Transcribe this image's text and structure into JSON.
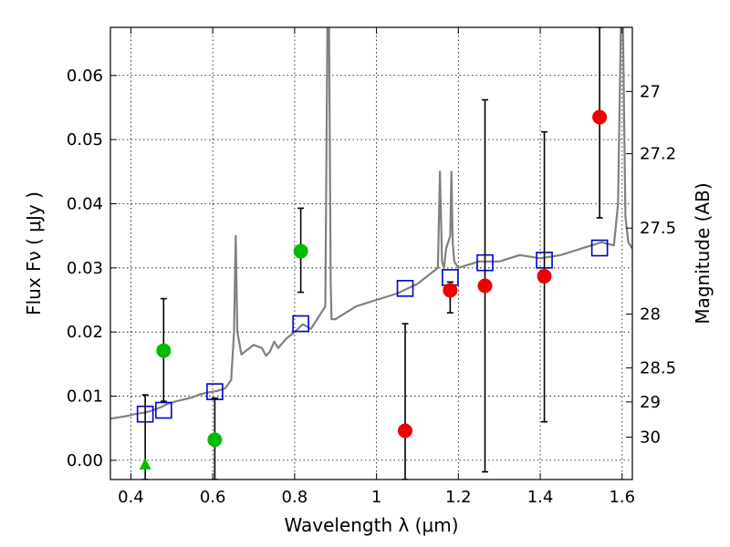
{
  "chart_data": {
    "type": "scatter",
    "title": "",
    "xlabel": "Wavelength  λ (μm)",
    "ylabel": "Flux  Fν  ( μJy )",
    "ylabel_right": "Magnitude (AB)",
    "xlim": [
      0.35,
      1.625
    ],
    "ylim": [
      -0.003,
      0.0675
    ],
    "xticks": [
      0.4,
      0.6,
      0.8,
      1.0,
      1.2,
      1.4,
      1.6
    ],
    "xtick_labels": [
      "0.4",
      "0.6",
      "0.8",
      "1",
      "1.2",
      "1.4",
      "1.6"
    ],
    "yticks": [
      0.0,
      0.01,
      0.02,
      0.03,
      0.04,
      0.05,
      0.06
    ],
    "ytick_labels": [
      "0.00",
      "0.01",
      "0.02",
      "0.03",
      "0.04",
      "0.05",
      "0.06"
    ],
    "right_ticks": [
      {
        "label": "27",
        "flux": 0.0575
      },
      {
        "label": "27.2",
        "flux": 0.0478
      },
      {
        "label": "27.5",
        "flux": 0.0362
      },
      {
        "label": "28",
        "flux": 0.0228
      },
      {
        "label": "28.5",
        "flux": 0.0144
      },
      {
        "label": "29",
        "flux": 0.0091
      },
      {
        "label": "30",
        "flux": 0.0036
      }
    ],
    "grid": true,
    "colors": {
      "spectrum": "#808080",
      "model_box": "#0000cc",
      "detection_green": "#00bb00",
      "detection_red": "#ee0000",
      "errorbar": "#000000"
    },
    "series": [
      {
        "name": "model spectrum",
        "kind": "line",
        "x": [
          0.35,
          0.37,
          0.39,
          0.41,
          0.43,
          0.45,
          0.47,
          0.49,
          0.51,
          0.53,
          0.55,
          0.57,
          0.59,
          0.61,
          0.63,
          0.645,
          0.652,
          0.656,
          0.66,
          0.67,
          0.68,
          0.7,
          0.72,
          0.73,
          0.74,
          0.75,
          0.76,
          0.78,
          0.8,
          0.82,
          0.84,
          0.86,
          0.875,
          0.88,
          0.884,
          0.888,
          0.89,
          0.9,
          0.95,
          1.0,
          1.05,
          1.1,
          1.13,
          1.15,
          1.155,
          1.16,
          1.165,
          1.17,
          1.18,
          1.183,
          1.186,
          1.19,
          1.2,
          1.25,
          1.3,
          1.35,
          1.4,
          1.45,
          1.5,
          1.55,
          1.58,
          1.59,
          1.597,
          1.602,
          1.608,
          1.615,
          1.625
        ],
        "y": [
          0.0065,
          0.0067,
          0.0069,
          0.0072,
          0.0074,
          0.0077,
          0.0082,
          0.0088,
          0.0092,
          0.0095,
          0.0098,
          0.0103,
          0.0106,
          0.0108,
          0.0112,
          0.0125,
          0.02,
          0.035,
          0.02,
          0.0165,
          0.017,
          0.018,
          0.0175,
          0.0163,
          0.017,
          0.0185,
          0.0175,
          0.019,
          0.02,
          0.0212,
          0.0205,
          0.0225,
          0.024,
          0.0675,
          0.0675,
          0.028,
          0.022,
          0.022,
          0.024,
          0.025,
          0.026,
          0.0275,
          0.029,
          0.03,
          0.045,
          0.031,
          0.03,
          0.033,
          0.035,
          0.045,
          0.034,
          0.031,
          0.03,
          0.031,
          0.031,
          0.032,
          0.0315,
          0.032,
          0.033,
          0.034,
          0.0335,
          0.04,
          0.0675,
          0.0675,
          0.038,
          0.034,
          0.033
        ]
      },
      {
        "name": "model photometry",
        "kind": "box",
        "x": [
          0.435,
          0.48,
          0.605,
          0.815,
          1.07,
          1.18,
          1.265,
          1.41,
          1.545
        ],
        "y": [
          0.0072,
          0.0078,
          0.0107,
          0.0213,
          0.0268,
          0.0285,
          0.0308,
          0.0312,
          0.0331
        ]
      },
      {
        "name": "green detections",
        "kind": "circle",
        "x": [
          0.48,
          0.605,
          0.815
        ],
        "y": [
          0.0171,
          0.0032,
          0.0326
        ],
        "err": [
          [
            0.0092,
            0.0252
          ],
          [
            -0.003,
            0.0097
          ],
          [
            0.0262,
            0.0393
          ]
        ]
      },
      {
        "name": "green upper limit",
        "kind": "triangle",
        "x": [
          0.435
        ],
        "y": [
          -0.0007
        ],
        "err": [
          [
            -0.003,
            0.0102
          ]
        ]
      },
      {
        "name": "red detections",
        "kind": "circle",
        "x": [
          1.07,
          1.18,
          1.265,
          1.41,
          1.545
        ],
        "y": [
          0.0046,
          0.0265,
          0.0272,
          0.0287,
          0.0535
        ],
        "err": [
          [
            -0.003,
            0.0213
          ],
          [
            0.023,
            0.0278
          ],
          [
            -0.0018,
            0.0562
          ],
          [
            0.006,
            0.0512
          ],
          [
            0.0378,
            0.0675
          ]
        ]
      }
    ]
  }
}
